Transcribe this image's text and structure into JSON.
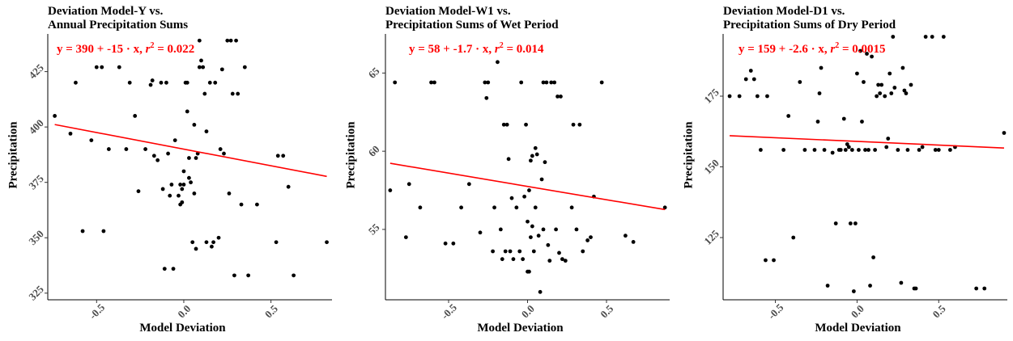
{
  "chart_data": [
    {
      "type": "scatter",
      "title": "Deviation Model-Y vs.",
      "subtitle": "Annual Precipitation Sums",
      "xlabel": "Model Deviation",
      "ylabel": "Precipitation",
      "equation": {
        "y_text": "y = 390 + -15 · x,",
        "r2_label": "r",
        "r2_value": "= 0.022"
      },
      "xlim": [
        -0.78,
        0.85
      ],
      "ylim": [
        322,
        442
      ],
      "xticks": [
        -0.5,
        0.0,
        0.5
      ],
      "xtick_labels": [
        "-0.5",
        "0.0",
        "0.5"
      ],
      "yticks": [
        325,
        350,
        375,
        400,
        425
      ],
      "ytick_labels": [
        "325",
        "350",
        "375",
        "400",
        "425"
      ],
      "fit": {
        "intercept": 390,
        "slope": -15,
        "color": "#ff0000"
      },
      "grid": false,
      "points": [
        [
          -0.74,
          405
        ],
        [
          -0.65,
          397
        ],
        [
          -0.62,
          420
        ],
        [
          -0.58,
          353
        ],
        [
          -0.53,
          394
        ],
        [
          -0.5,
          427
        ],
        [
          -0.47,
          427
        ],
        [
          -0.46,
          353
        ],
        [
          -0.43,
          390
        ],
        [
          -0.37,
          427
        ],
        [
          -0.33,
          390
        ],
        [
          -0.31,
          420
        ],
        [
          -0.28,
          405
        ],
        [
          -0.26,
          371
        ],
        [
          -0.22,
          390
        ],
        [
          -0.19,
          419
        ],
        [
          -0.18,
          421
        ],
        [
          -0.17,
          387
        ],
        [
          -0.15,
          385
        ],
        [
          -0.13,
          420
        ],
        [
          -0.12,
          372
        ],
        [
          -0.11,
          336
        ],
        [
          -0.1,
          420
        ],
        [
          -0.09,
          388
        ],
        [
          -0.08,
          369
        ],
        [
          -0.07,
          374
        ],
        [
          -0.06,
          336
        ],
        [
          -0.05,
          394
        ],
        [
          -0.03,
          369
        ],
        [
          -0.02,
          374
        ],
        [
          -0.02,
          365
        ],
        [
          -0.01,
          366
        ],
        [
          -0.01,
          372
        ],
        [
          0.0,
          374
        ],
        [
          0.0,
          380
        ],
        [
          0.01,
          420
        ],
        [
          0.02,
          420
        ],
        [
          0.02,
          407
        ],
        [
          0.03,
          386
        ],
        [
          0.03,
          377
        ],
        [
          0.04,
          375
        ],
        [
          0.05,
          348
        ],
        [
          0.06,
          401
        ],
        [
          0.06,
          370
        ],
        [
          0.07,
          345
        ],
        [
          0.07,
          386
        ],
        [
          0.08,
          388
        ],
        [
          0.09,
          439
        ],
        [
          0.09,
          427
        ],
        [
          0.1,
          430
        ],
        [
          0.11,
          427
        ],
        [
          0.12,
          415
        ],
        [
          0.13,
          398
        ],
        [
          0.13,
          348
        ],
        [
          0.15,
          420
        ],
        [
          0.16,
          346
        ],
        [
          0.17,
          348
        ],
        [
          0.18,
          420
        ],
        [
          0.2,
          350
        ],
        [
          0.21,
          390
        ],
        [
          0.22,
          426
        ],
        [
          0.23,
          388
        ],
        [
          0.25,
          439
        ],
        [
          0.26,
          370
        ],
        [
          0.27,
          439
        ],
        [
          0.28,
          415
        ],
        [
          0.29,
          333
        ],
        [
          0.3,
          439
        ],
        [
          0.31,
          415
        ],
        [
          0.33,
          365
        ],
        [
          0.35,
          427
        ],
        [
          0.37,
          333
        ],
        [
          0.42,
          365
        ],
        [
          0.53,
          348
        ],
        [
          0.54,
          387
        ],
        [
          0.57,
          387
        ],
        [
          0.6,
          373
        ],
        [
          0.63,
          333
        ],
        [
          0.82,
          348
        ]
      ]
    },
    {
      "type": "scatter",
      "title": "Deviation Model-W1 vs.",
      "subtitle": "Precipitation Sums of Wet Period",
      "xlabel": "Model Deviation",
      "ylabel": "Precipitation",
      "equation": {
        "y_text": "y = 58 + -1.7 · x,",
        "r2_label": "r",
        "r2_value": "= 0.014"
      },
      "xlim": [
        -0.9,
        0.9
      ],
      "ylim": [
        50.5,
        67.5
      ],
      "xticks": [
        -0.5,
        0.0,
        0.5
      ],
      "xtick_labels": [
        "-0.5",
        "0.0",
        "0.5"
      ],
      "yticks": [
        55,
        60,
        65
      ],
      "ytick_labels": [
        "55",
        "60",
        "65"
      ],
      "fit": {
        "intercept": 57.75,
        "slope": -1.7,
        "color": "#ff0000"
      },
      "grid": false,
      "points": [
        [
          -0.87,
          57.5
        ],
        [
          -0.84,
          64.4
        ],
        [
          -0.77,
          54.5
        ],
        [
          -0.75,
          57.9
        ],
        [
          -0.68,
          56.4
        ],
        [
          -0.61,
          64.4
        ],
        [
          -0.59,
          64.4
        ],
        [
          -0.52,
          54.1
        ],
        [
          -0.47,
          54.1
        ],
        [
          -0.42,
          56.4
        ],
        [
          -0.37,
          57.9
        ],
        [
          -0.3,
          54.8
        ],
        [
          -0.27,
          64.4
        ],
        [
          -0.26,
          63.4
        ],
        [
          -0.25,
          64.4
        ],
        [
          -0.22,
          53.6
        ],
        [
          -0.21,
          56.4
        ],
        [
          -0.19,
          65.7
        ],
        [
          -0.17,
          55.0
        ],
        [
          -0.16,
          53.1
        ],
        [
          -0.15,
          61.7
        ],
        [
          -0.14,
          53.6
        ],
        [
          -0.13,
          61.7
        ],
        [
          -0.12,
          59.5
        ],
        [
          -0.11,
          53.6
        ],
        [
          -0.1,
          57.0
        ],
        [
          -0.09,
          53.1
        ],
        [
          -0.07,
          56.4
        ],
        [
          -0.05,
          53.6
        ],
        [
          -0.04,
          64.4
        ],
        [
          -0.03,
          53.1
        ],
        [
          -0.02,
          57.1
        ],
        [
          -0.01,
          61.7
        ],
        [
          0.0,
          52.3
        ],
        [
          0.0,
          55.5
        ],
        [
          0.01,
          57.5
        ],
        [
          0.01,
          52.3
        ],
        [
          0.02,
          59.4
        ],
        [
          0.02,
          54.5
        ],
        [
          0.03,
          55.2
        ],
        [
          0.03,
          59.7
        ],
        [
          0.04,
          53.6
        ],
        [
          0.05,
          56.4
        ],
        [
          0.05,
          60.2
        ],
        [
          0.06,
          59.8
        ],
        [
          0.07,
          54.6
        ],
        [
          0.08,
          51.0
        ],
        [
          0.09,
          58.2
        ],
        [
          0.1,
          64.4
        ],
        [
          0.1,
          55.0
        ],
        [
          0.11,
          59.3
        ],
        [
          0.12,
          64.4
        ],
        [
          0.13,
          54.0
        ],
        [
          0.14,
          53.0
        ],
        [
          0.15,
          64.4
        ],
        [
          0.17,
          64.4
        ],
        [
          0.18,
          55.0
        ],
        [
          0.19,
          63.5
        ],
        [
          0.2,
          53.5
        ],
        [
          0.21,
          63.5
        ],
        [
          0.22,
          53.1
        ],
        [
          0.24,
          53.0
        ],
        [
          0.28,
          56.4
        ],
        [
          0.29,
          61.7
        ],
        [
          0.31,
          55.0
        ],
        [
          0.33,
          61.7
        ],
        [
          0.35,
          53.6
        ],
        [
          0.38,
          54.3
        ],
        [
          0.4,
          54.5
        ],
        [
          0.42,
          57.1
        ],
        [
          0.47,
          64.4
        ],
        [
          0.62,
          54.6
        ],
        [
          0.67,
          54.2
        ],
        [
          0.87,
          56.4
        ]
      ]
    },
    {
      "type": "scatter",
      "title": "Deviation Model-D1 vs.",
      "subtitle": "Precipitation Sums of Dry Period",
      "xlabel": "Model Deviation",
      "ylabel": "Precipitation",
      "equation": {
        "y_text": "y = 159 + -2.6 · x,",
        "r2_label": "r",
        "r2_value": "= 0.0015"
      },
      "xlim": [
        -0.82,
        0.92
      ],
      "ylim": [
        103,
        197
      ],
      "xticks": [
        -0.5,
        0.0,
        0.5
      ],
      "xtick_labels": [
        "-0.5",
        "0.0",
        "0.5"
      ],
      "yticks": [
        125,
        150,
        175
      ],
      "ytick_labels": [
        "125",
        "150",
        "175"
      ],
      "fit": {
        "intercept": 159,
        "slope": -2.6,
        "color": "#ff0000"
      },
      "grid": false,
      "points": [
        [
          -0.78,
          175
        ],
        [
          -0.72,
          175
        ],
        [
          -0.68,
          181
        ],
        [
          -0.65,
          184
        ],
        [
          -0.63,
          181
        ],
        [
          -0.61,
          175
        ],
        [
          -0.59,
          156
        ],
        [
          -0.55,
          175
        ],
        [
          -0.56,
          117
        ],
        [
          -0.51,
          117
        ],
        [
          -0.45,
          156
        ],
        [
          -0.42,
          168
        ],
        [
          -0.39,
          125
        ],
        [
          -0.35,
          180
        ],
        [
          -0.32,
          156
        ],
        [
          -0.26,
          156
        ],
        [
          -0.24,
          166
        ],
        [
          -0.23,
          176
        ],
        [
          -0.22,
          185
        ],
        [
          -0.2,
          156
        ],
        [
          -0.18,
          108
        ],
        [
          -0.15,
          155
        ],
        [
          -0.13,
          130
        ],
        [
          -0.11,
          156
        ],
        [
          -0.1,
          156
        ],
        [
          -0.08,
          167
        ],
        [
          -0.07,
          156
        ],
        [
          -0.06,
          158
        ],
        [
          -0.05,
          157
        ],
        [
          -0.04,
          130
        ],
        [
          -0.03,
          156
        ],
        [
          -0.02,
          106
        ],
        [
          -0.01,
          130
        ],
        [
          0.0,
          183
        ],
        [
          0.01,
          156
        ],
        [
          0.02,
          191
        ],
        [
          0.03,
          166
        ],
        [
          0.04,
          180
        ],
        [
          0.05,
          156
        ],
        [
          0.06,
          190
        ],
        [
          0.07,
          156
        ],
        [
          0.08,
          108
        ],
        [
          0.09,
          189
        ],
        [
          0.1,
          118
        ],
        [
          0.11,
          156
        ],
        [
          0.12,
          175
        ],
        [
          0.13,
          179
        ],
        [
          0.14,
          176
        ],
        [
          0.15,
          179
        ],
        [
          0.17,
          175
        ],
        [
          0.18,
          157
        ],
        [
          0.19,
          160
        ],
        [
          0.2,
          183
        ],
        [
          0.21,
          176
        ],
        [
          0.22,
          196
        ],
        [
          0.23,
          178
        ],
        [
          0.25,
          156
        ],
        [
          0.27,
          109
        ],
        [
          0.28,
          185
        ],
        [
          0.29,
          177
        ],
        [
          0.3,
          176
        ],
        [
          0.31,
          156
        ],
        [
          0.33,
          179
        ],
        [
          0.35,
          107
        ],
        [
          0.36,
          107
        ],
        [
          0.38,
          156
        ],
        [
          0.4,
          157
        ],
        [
          0.42,
          196
        ],
        [
          0.46,
          196
        ],
        [
          0.48,
          156
        ],
        [
          0.5,
          156
        ],
        [
          0.53,
          196
        ],
        [
          0.57,
          156
        ],
        [
          0.6,
          157
        ],
        [
          0.73,
          107
        ],
        [
          0.78,
          107
        ],
        [
          0.9,
          162
        ]
      ]
    }
  ]
}
